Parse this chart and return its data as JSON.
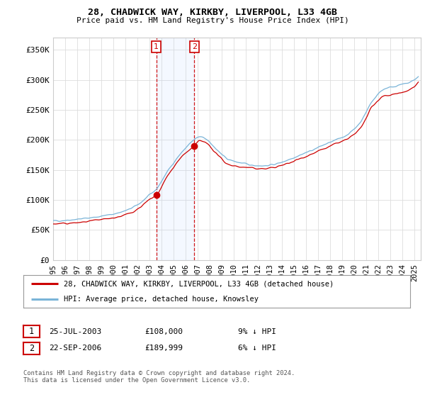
{
  "title": "28, CHADWICK WAY, KIRKBY, LIVERPOOL, L33 4GB",
  "subtitle": "Price paid vs. HM Land Registry's House Price Index (HPI)",
  "ylabel_ticks": [
    "£0",
    "£50K",
    "£100K",
    "£150K",
    "£200K",
    "£250K",
    "£300K",
    "£350K"
  ],
  "ytick_values": [
    0,
    50000,
    100000,
    150000,
    200000,
    250000,
    300000,
    350000
  ],
  "ylim": [
    0,
    370000
  ],
  "xlim_start": 1995.0,
  "xlim_end": 2025.5,
  "hpi_color": "#7ab4d8",
  "price_color": "#cc0000",
  "transaction1_x": 2003.56,
  "transaction1_y": 108000,
  "transaction2_x": 2006.72,
  "transaction2_y": 189999,
  "transaction1_label": "1",
  "transaction2_label": "2",
  "legend_line1": "28, CHADWICK WAY, KIRKBY, LIVERPOOL, L33 4GB (detached house)",
  "legend_line2": "HPI: Average price, detached house, Knowsley",
  "table_row1": [
    "1",
    "25-JUL-2003",
    "£108,000",
    "9% ↓ HPI"
  ],
  "table_row2": [
    "2",
    "22-SEP-2006",
    "£189,999",
    "6% ↓ HPI"
  ],
  "footer": "Contains HM Land Registry data © Crown copyright and database right 2024.\nThis data is licensed under the Open Government Licence v3.0.",
  "background_color": "#ffffff",
  "grid_color": "#dddddd",
  "xtick_years": [
    1995,
    1996,
    1997,
    1998,
    1999,
    2000,
    2001,
    2002,
    2003,
    2004,
    2005,
    2006,
    2007,
    2008,
    2009,
    2010,
    2011,
    2012,
    2013,
    2014,
    2015,
    2016,
    2017,
    2018,
    2019,
    2020,
    2021,
    2022,
    2023,
    2024,
    2025
  ],
  "span_color": "#ddeeff",
  "hpi_anchor_x": [
    1995,
    1997,
    1999,
    2001,
    2002,
    2003,
    2003.56,
    2004.5,
    2005.5,
    2006.72,
    2007.2,
    2007.8,
    2008.5,
    2009.5,
    2010.5,
    2011.5,
    2012.5,
    2013.5,
    2014.5,
    2015.5,
    2016.5,
    2017.5,
    2018.5,
    2019.5,
    2020.5,
    2021.5,
    2022.5,
    2023.5,
    2024.5,
    2025.3
  ],
  "hpi_anchor_y": [
    65000,
    68000,
    73000,
    82000,
    92000,
    108000,
    118000,
    148000,
    175000,
    200000,
    205000,
    200000,
    185000,
    168000,
    162000,
    158000,
    157000,
    160000,
    167000,
    175000,
    183000,
    192000,
    200000,
    210000,
    230000,
    265000,
    285000,
    290000,
    295000,
    305000
  ],
  "price_anchor_x": [
    1995,
    1997,
    1999,
    2001,
    2002,
    2003,
    2003.56,
    2004.5,
    2005.5,
    2006.72,
    2007.2,
    2007.8,
    2008.5,
    2009.5,
    2010.5,
    2011.5,
    2012.5,
    2013.5,
    2014.5,
    2015.5,
    2016.5,
    2017.5,
    2018.5,
    2019.5,
    2020.5,
    2021.5,
    2022.5,
    2023.5,
    2024.5,
    2025.3
  ],
  "price_anchor_y": [
    60000,
    62000,
    67000,
    75000,
    85000,
    100000,
    108000,
    140000,
    168000,
    189999,
    198000,
    193000,
    178000,
    160000,
    155000,
    153000,
    152000,
    155000,
    161000,
    169000,
    177000,
    185000,
    194000,
    202000,
    220000,
    255000,
    273000,
    277000,
    283000,
    296000
  ]
}
